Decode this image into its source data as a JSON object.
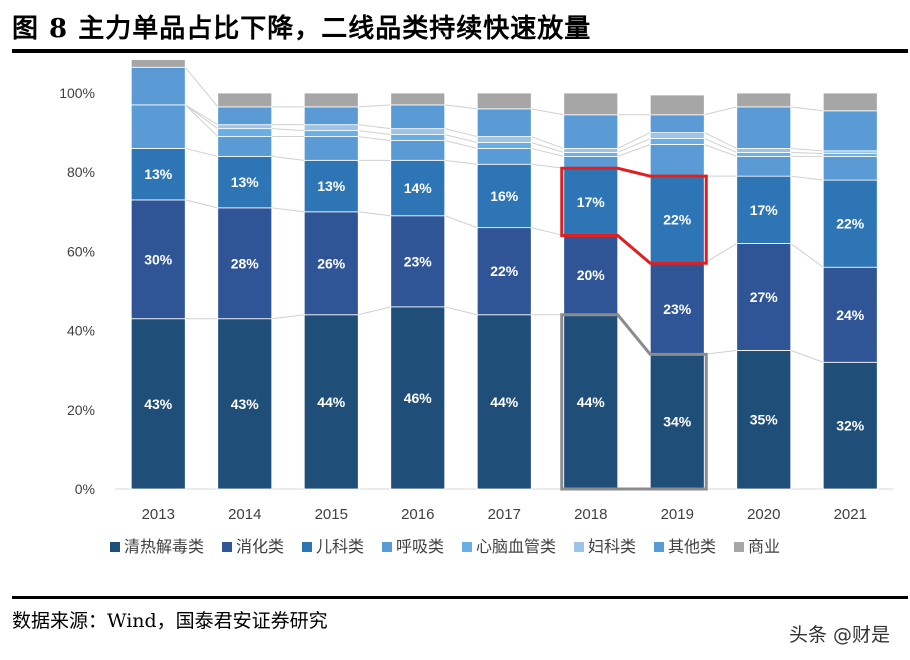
{
  "header": {
    "title": "图 8 主力单品占比下降，二线品类持续快速放量"
  },
  "footer": {
    "source": "数据来源：Wind，国泰君安证券研究",
    "watermark": "头条 @财是"
  },
  "chart_data": {
    "type": "stacked-bar",
    "title": "",
    "categories": [
      "2013",
      "2014",
      "2015",
      "2016",
      "2017",
      "2018",
      "2019",
      "2020",
      "2021"
    ],
    "y_ticks": [
      "0%",
      "20%",
      "40%",
      "60%",
      "80%",
      "100%"
    ],
    "ylim": [
      0,
      100
    ],
    "legend_position": "bottom",
    "series": [
      {
        "name": "清热解毒类",
        "color": "#1f4e79",
        "values": [
          43,
          43,
          44,
          46,
          44,
          44,
          34,
          35,
          32
        ],
        "labels": [
          "43%",
          "43%",
          "44%",
          "46%",
          "44%",
          "44%",
          "34%",
          "35%",
          "32%"
        ]
      },
      {
        "name": "消化类",
        "color": "#2f5597",
        "values": [
          30,
          28,
          26,
          23,
          22,
          20,
          23,
          27,
          24
        ],
        "labels": [
          "30%",
          "28%",
          "26%",
          "23%",
          "22%",
          "20%",
          "23%",
          "27%",
          "24%"
        ]
      },
      {
        "name": "儿科类",
        "color": "#2e75b6",
        "values": [
          13,
          13,
          13,
          14,
          16,
          17,
          22,
          17,
          22
        ],
        "labels": [
          "13%",
          "13%",
          "13%",
          "14%",
          "16%",
          "17%",
          "22%",
          "17%",
          "22%"
        ]
      },
      {
        "name": "呼吸类",
        "color": "#5b9bd5",
        "values": [
          11,
          5,
          6,
          5,
          4,
          3,
          8,
          5,
          6
        ],
        "labels": []
      },
      {
        "name": "心脑血管类",
        "color": "#6aaee6",
        "values": [
          0,
          2,
          1.5,
          1.5,
          1.5,
          1,
          1.5,
          1,
          0.7
        ],
        "labels": []
      },
      {
        "name": "妇科类",
        "color": "#9dc3e6",
        "values": [
          0,
          1,
          1.5,
          1.5,
          1.5,
          1,
          1.5,
          1,
          0.7
        ],
        "labels": []
      },
      {
        "name": "其他类",
        "color": "#5b9bd5",
        "values": [
          9.5,
          4.5,
          4.5,
          6,
          7,
          8.5,
          4.5,
          10.5,
          10.1
        ],
        "labels": []
      },
      {
        "name": "商业",
        "color": "#a6a6a6",
        "values": [
          3.5,
          3.5,
          3.5,
          3,
          4,
          5.5,
          5,
          3.5,
          4.5
        ],
        "labels": []
      }
    ],
    "highlights": [
      {
        "series": "儿科类",
        "categories": [
          "2018",
          "2019"
        ],
        "color": "#e02020"
      },
      {
        "series": "清热解毒类",
        "categories": [
          "2018",
          "2019"
        ],
        "color": "#8c8c8c"
      }
    ]
  }
}
